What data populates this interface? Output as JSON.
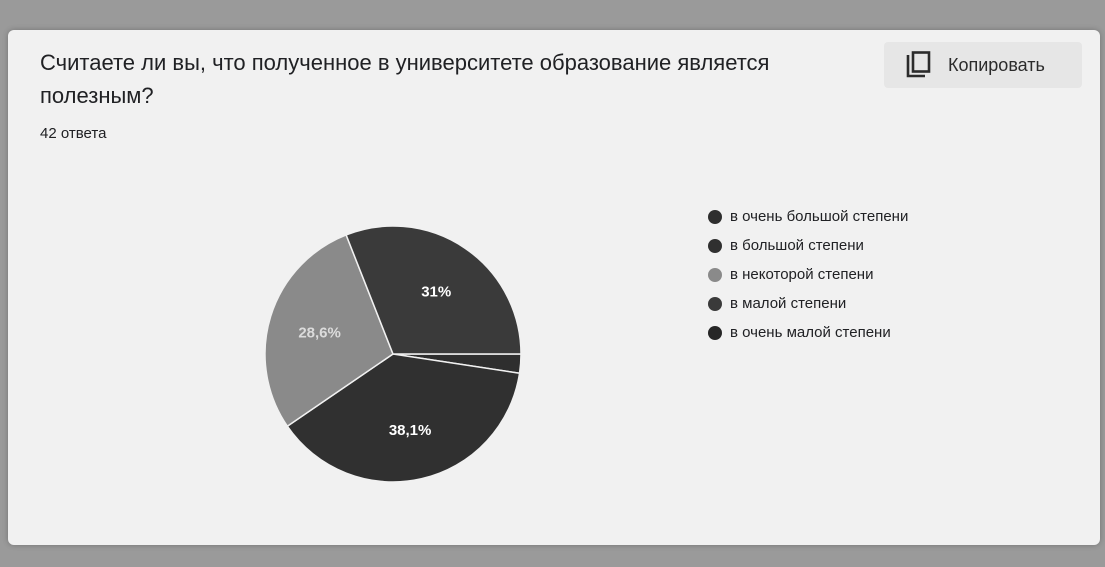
{
  "question": {
    "title": "Считаете ли вы, что полученное в университете образование является полезным?",
    "responses": "42 ответа"
  },
  "toolbar": {
    "copy_label": "Копировать",
    "copy_icon": "copy-icon"
  },
  "chart_data": {
    "type": "pie",
    "title": "",
    "categories": [
      "в очень большой степени",
      "в большой степени",
      "в некоторой степени",
      "в малой степени",
      "в очень малой степени"
    ],
    "values": [
      2.4,
      38.1,
      28.6,
      31.0,
      0.0
    ],
    "colors": [
      "#2e2e2e",
      "#303030",
      "#8a8a8a",
      "#3a3a3a",
      "#262626"
    ],
    "data_labels": [
      "",
      "38,1%",
      "28,6%",
      "31%",
      ""
    ],
    "legend_position": "right"
  }
}
